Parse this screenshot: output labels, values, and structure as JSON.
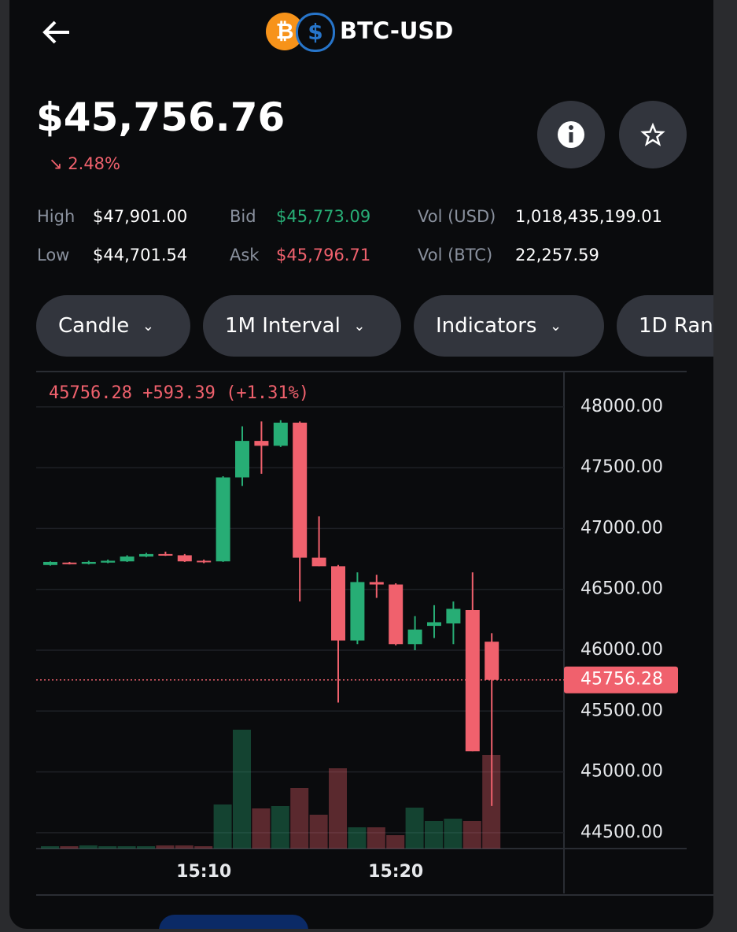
{
  "header": {
    "symbol": "BTC-USD",
    "price": "$45,756.76",
    "change": "2.48%"
  },
  "stats": [
    {
      "label": "High",
      "value": "$47,901.00"
    },
    {
      "label": "Low",
      "value": "$44,701.54"
    },
    {
      "label": "Bid",
      "value": "$45,773.09"
    },
    {
      "label": "Ask",
      "value": "$45,796.71"
    },
    {
      "label": "Vol (USD)",
      "value": "1,018,435,199.01"
    },
    {
      "label": "Vol (BTC)",
      "value": "22,257.59"
    }
  ],
  "controls": [
    "Candle",
    "1M Interval",
    "Indicators",
    "1D Ran"
  ],
  "chart_data": {
    "type": "candlestick",
    "annotation": "45756.28 +593.39 (+1.31%)",
    "last_price": {
      "value": 45756.28,
      "label": "45756.28"
    },
    "categories": [
      null,
      null,
      null,
      null,
      null,
      null,
      null,
      null,
      "15:10",
      null,
      null,
      null,
      null,
      null,
      null,
      null,
      null,
      null,
      "15:20",
      null,
      null,
      null,
      null,
      null
    ],
    "open": [
      46700,
      46720,
      46710,
      46720,
      46730,
      46770,
      46790,
      46780,
      46735,
      46730,
      47420,
      47720,
      47680,
      47870,
      46760,
      46690,
      46080,
      46560,
      46540,
      46050,
      46200,
      46220,
      46330,
      46070
    ],
    "high": [
      46730,
      46725,
      46735,
      46745,
      46780,
      46800,
      46810,
      46790,
      46745,
      47430,
      47840,
      47880,
      47890,
      47880,
      47100,
      46700,
      46640,
      46620,
      46550,
      46280,
      46370,
      46400,
      46640,
      46140
    ],
    "low": [
      46695,
      46705,
      46705,
      46715,
      46725,
      46765,
      46775,
      46725,
      46715,
      46725,
      47350,
      47450,
      47670,
      46400,
      46690,
      45570,
      46050,
      46430,
      46040,
      46000,
      46100,
      46050,
      45170,
      44720
    ],
    "close": [
      46725,
      46710,
      46725,
      46735,
      46770,
      46790,
      46780,
      46730,
      46725,
      47420,
      47720,
      47680,
      47870,
      46760,
      46690,
      46080,
      46560,
      46540,
      46050,
      46170,
      46230,
      46340,
      45170,
      45756.28
    ],
    "volume": [
      3,
      3,
      4,
      3,
      3,
      3,
      4,
      4,
      3,
      56,
      151,
      51,
      54,
      77,
      43,
      102,
      27,
      27,
      17,
      52,
      35,
      38,
      35,
      119
    ],
    "up_color": "#27ad75",
    "down_color": "#f0616d",
    "ylim": [
      44370,
      48290
    ],
    "yticks": [
      {
        "value": 44500,
        "label": "44500.00"
      },
      {
        "value": 45000,
        "label": "45000.00"
      },
      {
        "value": 45500,
        "label": "45500.00"
      },
      {
        "value": 46000,
        "label": "46000.00"
      },
      {
        "value": 46500,
        "label": "46500.00"
      },
      {
        "value": 47000,
        "label": "47000.00"
      },
      {
        "value": 47500,
        "label": "47500.00"
      },
      {
        "value": 48000,
        "label": "48000.00"
      }
    ],
    "grid": true
  }
}
